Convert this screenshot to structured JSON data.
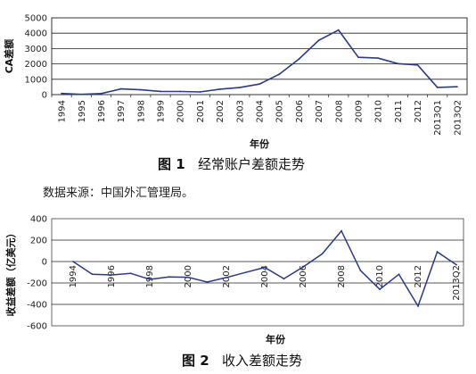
{
  "chart_data": [
    {
      "type": "line",
      "ylabel": "CA差额",
      "xlabel": "年份",
      "ylim": [
        0,
        5000
      ],
      "yticks": [
        0,
        1000,
        2000,
        3000,
        4000,
        5000
      ],
      "grid": true,
      "line_color": "#2b3a8c",
      "categories": [
        "1994",
        "1995",
        "1996",
        "1997",
        "1998",
        "1999",
        "2000",
        "2001",
        "2002",
        "2003",
        "2004",
        "2005",
        "2006",
        "2007",
        "2008",
        "2009",
        "2010",
        "2011",
        "2012",
        "2013Q1",
        "2013Q2"
      ],
      "values": [
        77,
        16,
        72,
        370,
        314,
        211,
        205,
        174,
        354,
        459,
        687,
        1324,
        2318,
        3532,
        4206,
        2433,
        2378,
        2017,
        1931,
        470,
        510
      ]
    },
    {
      "type": "line",
      "ylabel": "收益差额（亿美元）",
      "xlabel": "年份",
      "ylim": [
        -600,
        400
      ],
      "yticks": [
        -600,
        -400,
        -200,
        0,
        200,
        400
      ],
      "grid": true,
      "line_color": "#2b3a8c",
      "tick_labels": [
        "1994",
        "1996",
        "1998",
        "2000",
        "2002",
        "2004",
        "2006",
        "2008",
        "2010",
        "2012",
        "2013Q2"
      ],
      "x": [
        "1994",
        "1995",
        "1996",
        "1997",
        "1998",
        "1999",
        "2000",
        "2001",
        "2002",
        "2003",
        "2004",
        "2005",
        "2006",
        "2007",
        "2008",
        "2009",
        "2010",
        "2011",
        "2012",
        "2013Q1",
        "2013Q2"
      ],
      "values": [
        0,
        -118,
        -125,
        -110,
        -167,
        -143,
        -147,
        -192,
        -149,
        -102,
        -55,
        -161,
        -51,
        72,
        286,
        -85,
        -259,
        -119,
        -416,
        90,
        -30
      ]
    }
  ],
  "captions": {
    "fig1_num": "图 1",
    "fig1_title": "经常账户差额走势",
    "source": "数据来源：中国外汇管理局。",
    "fig2_num": "图 2",
    "fig2_title": "收入差额走势"
  }
}
